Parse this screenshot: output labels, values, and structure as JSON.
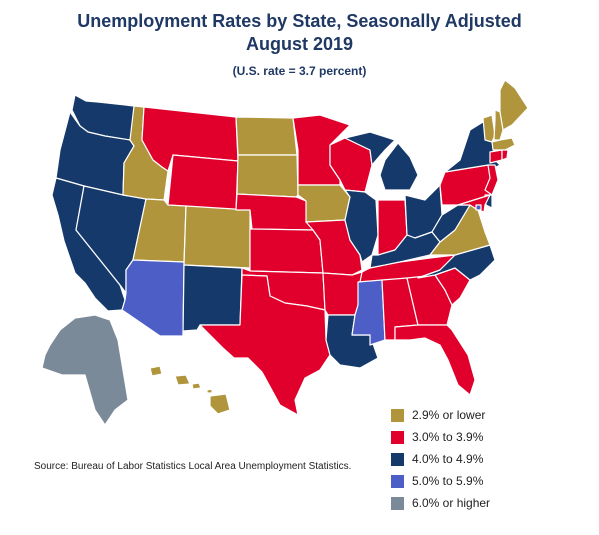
{
  "title_line1": "Unemployment Rates by State, Seasonally Adjusted",
  "title_line2": "August 2019",
  "subtitle": "(U.S. rate = 3.7 percent)",
  "source": "Source: Bureau of Labor Statistics Local Area Unemployment Statistics.",
  "legend": [
    {
      "label": "2.9% or lower",
      "color": "#b0953d"
    },
    {
      "label": "3.0% to 3.9%",
      "color": "#e0002b"
    },
    {
      "label": "4.0% to 4.9%",
      "color": "#15396a"
    },
    {
      "label": "5.0% to 5.9%",
      "color": "#4d5fc7"
    },
    {
      "label": "6.0% or higher",
      "color": "#7b8a99"
    }
  ],
  "states": {
    "WA": 4,
    "OR": 4,
    "CA": 4,
    "NV": 4,
    "ID": 2,
    "MT": 3,
    "WY": 3,
    "UT": 2,
    "AZ": 5,
    "CO": 2,
    "NM": 4,
    "ND": 2,
    "SD": 2,
    "NE": 3,
    "KS": 3,
    "OK": 3,
    "TX": 3,
    "MN": 3,
    "IA": 2,
    "MO": 3,
    "AR": 3,
    "LA": 4,
    "WI": 3,
    "IL": 4,
    "MI": 4,
    "IN": 3,
    "OH": 4,
    "KY": 4,
    "TN": 3,
    "MS": 5,
    "AL": 3,
    "GA": 3,
    "FL": 3,
    "SC": 3,
    "NC": 4,
    "VA": 2,
    "WV": 4,
    "PA": 3,
    "NY": 4,
    "ME": 2,
    "VT": 2,
    "NH": 2,
    "MA": 2,
    "CT": 3,
    "RI": 3,
    "NJ": 3,
    "DE": 4,
    "MD": 3,
    "DC": 5,
    "AK": 6,
    "HI": 2
  }
}
